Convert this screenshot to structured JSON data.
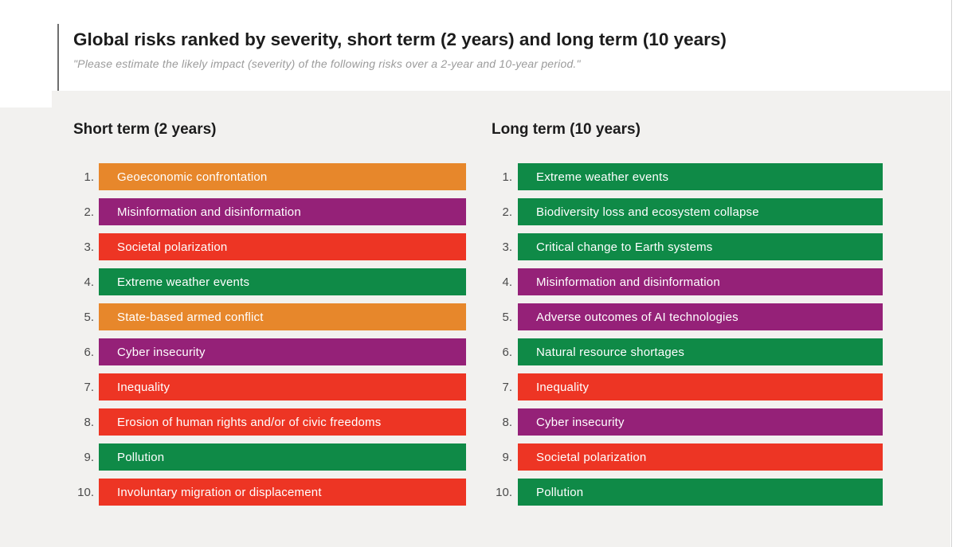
{
  "page": {
    "title": "Global risks ranked by severity, short term (2 years) and long term (10 years)",
    "subtitle": "\"Please estimate the likely impact (severity) of the following risks over a 2-year and 10-year period.\""
  },
  "palette": {
    "orange": "#E7872B",
    "purple": "#952178",
    "red": "#ED3524",
    "green": "#0F8A47",
    "panel_gray": "#F2F1EF"
  },
  "chart_data": {
    "type": "table",
    "title": "Global risks ranked by severity, short term (2 years) and long term (10 years)",
    "subtitle": "\"Please estimate the likely impact (severity) of the following risks over a 2-year and 10-year period.\"",
    "layout": "two ranked lists side by side; bar color encodes risk category",
    "columns": [
      {
        "header": "Short term (2 years)",
        "items": [
          {
            "rank": "1.",
            "label": "Geoeconomic confrontation",
            "color": "#E7872B"
          },
          {
            "rank": "2.",
            "label": "Misinformation and disinformation",
            "color": "#952178"
          },
          {
            "rank": "3.",
            "label": "Societal polarization",
            "color": "#ED3524"
          },
          {
            "rank": "4.",
            "label": "Extreme weather events",
            "color": "#0F8A47"
          },
          {
            "rank": "5.",
            "label": "State-based armed conflict",
            "color": "#E7872B"
          },
          {
            "rank": "6.",
            "label": "Cyber insecurity",
            "color": "#952178"
          },
          {
            "rank": "7.",
            "label": "Inequality",
            "color": "#ED3524"
          },
          {
            "rank": "8.",
            "label": "Erosion of human rights and/or of civic freedoms",
            "color": "#ED3524"
          },
          {
            "rank": "9.",
            "label": "Pollution",
            "color": "#0F8A47"
          },
          {
            "rank": "10.",
            "label": "Involuntary migration or displacement",
            "color": "#ED3524"
          }
        ]
      },
      {
        "header": "Long term (10 years)",
        "items": [
          {
            "rank": "1.",
            "label": "Extreme weather events",
            "color": "#0F8A47"
          },
          {
            "rank": "2.",
            "label": "Biodiversity loss and ecosystem collapse",
            "color": "#0F8A47"
          },
          {
            "rank": "3.",
            "label": "Critical change to Earth systems",
            "color": "#0F8A47"
          },
          {
            "rank": "4.",
            "label": "Misinformation and disinformation",
            "color": "#952178"
          },
          {
            "rank": "5.",
            "label": "Adverse outcomes of AI technologies",
            "color": "#952178"
          },
          {
            "rank": "6.",
            "label": "Natural resource shortages",
            "color": "#0F8A47"
          },
          {
            "rank": "7.",
            "label": "Inequality",
            "color": "#ED3524"
          },
          {
            "rank": "8.",
            "label": "Cyber insecurity",
            "color": "#952178"
          },
          {
            "rank": "9.",
            "label": "Societal polarization",
            "color": "#ED3524"
          },
          {
            "rank": "10.",
            "label": "Pollution",
            "color": "#0F8A47"
          }
        ]
      }
    ]
  }
}
